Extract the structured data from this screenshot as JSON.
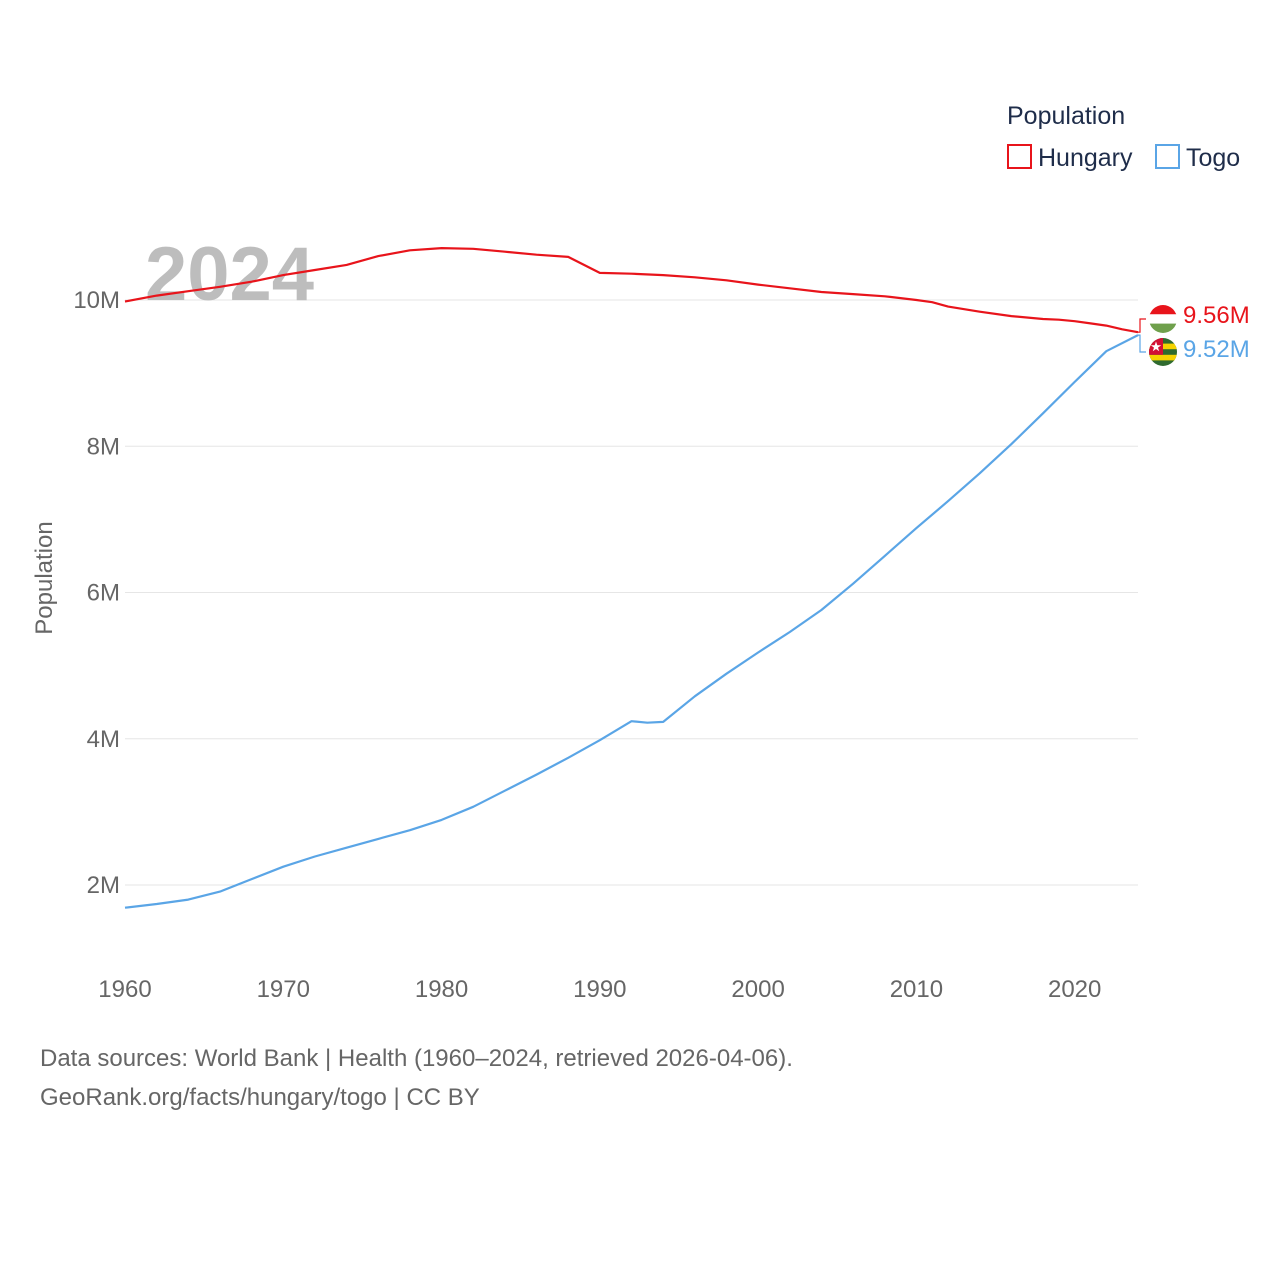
{
  "chart_data": {
    "type": "line",
    "year_label": "2024",
    "ylabel": "Population",
    "legend": {
      "title": "Population",
      "placement": "top-right"
    },
    "xlim": [
      1960,
      2024
    ],
    "ylim": [
      1000000,
      11200000
    ],
    "x_ticks": [
      1960,
      1970,
      1980,
      1990,
      2000,
      2010,
      2020
    ],
    "y_ticks": [
      {
        "value": 2000000,
        "label": "2M"
      },
      {
        "value": 4000000,
        "label": "4M"
      },
      {
        "value": 6000000,
        "label": "6M"
      },
      {
        "value": 8000000,
        "label": "8M"
      },
      {
        "value": 10000000,
        "label": "10M"
      }
    ],
    "series": [
      {
        "name": "Hungary",
        "color": "#e8141b",
        "end_label": "9.56M",
        "flag": "hungary-flag-icon",
        "x": [
          1960,
          1962,
          1964,
          1966,
          1968,
          1970,
          1972,
          1974,
          1976,
          1978,
          1980,
          1982,
          1984,
          1986,
          1988,
          1990,
          1992,
          1994,
          1996,
          1998,
          2000,
          2002,
          2004,
          2006,
          2008,
          2010,
          2011,
          2012,
          2014,
          2016,
          2018,
          2019,
          2020,
          2021,
          2022,
          2023,
          2024
        ],
        "values": [
          9980000,
          10060000,
          10120000,
          10180000,
          10250000,
          10340000,
          10410000,
          10480000,
          10600000,
          10680000,
          10710000,
          10700000,
          10660000,
          10620000,
          10590000,
          10370000,
          10360000,
          10340000,
          10310000,
          10270000,
          10210000,
          10160000,
          10110000,
          10080000,
          10050000,
          10000000,
          9970000,
          9910000,
          9840000,
          9780000,
          9740000,
          9730000,
          9710000,
          9680000,
          9650000,
          9600000,
          9560000
        ]
      },
      {
        "name": "Togo",
        "color": "#5aa5e6",
        "end_label": "9.52M",
        "flag": "togo-flag-icon",
        "x": [
          1960,
          1962,
          1964,
          1966,
          1968,
          1970,
          1972,
          1974,
          1976,
          1978,
          1980,
          1982,
          1984,
          1986,
          1988,
          1990,
          1992,
          1993,
          1994,
          1996,
          1998,
          2000,
          2002,
          2004,
          2006,
          2008,
          2010,
          2012,
          2014,
          2016,
          2018,
          2020,
          2022,
          2024
        ],
        "values": [
          1690000,
          1740000,
          1800000,
          1910000,
          2080000,
          2250000,
          2390000,
          2510000,
          2630000,
          2750000,
          2890000,
          3070000,
          3290000,
          3510000,
          3740000,
          3980000,
          4240000,
          4220000,
          4230000,
          4580000,
          4890000,
          5180000,
          5460000,
          5760000,
          6120000,
          6500000,
          6880000,
          7250000,
          7630000,
          8030000,
          8450000,
          8880000,
          9300000,
          9520000
        ]
      }
    ]
  },
  "footer": {
    "line1": "Data sources: World Bank | Health (1960–2024, retrieved 2026-04-06).",
    "line2": "GeoRank.org/facts/hungary/togo | CC BY"
  }
}
